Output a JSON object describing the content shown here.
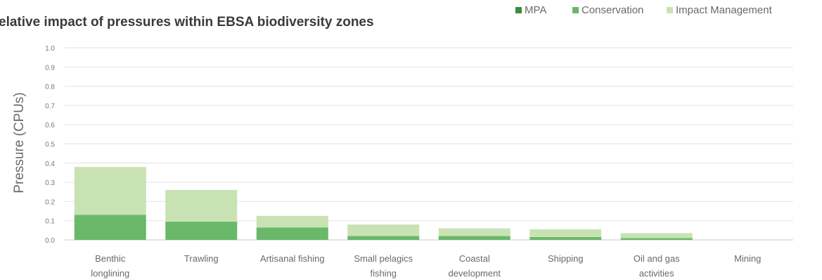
{
  "chart_data": {
    "type": "bar",
    "stacked": true,
    "title": "elative impact of pressures within EBSA biodiversity zones",
    "xlabel": "",
    "ylabel": "Pressure (CPUs)",
    "ylim": [
      0,
      1.0
    ],
    "yticks": [
      "0.0",
      "0.1",
      "0.2",
      "0.3",
      "0.4",
      "0.5",
      "0.6",
      "0.7",
      "0.8",
      "0.9",
      "1.0"
    ],
    "grid": true,
    "legend_position": "top-right",
    "categories": [
      [
        "Benthic",
        "longlining"
      ],
      [
        "Trawling"
      ],
      [
        "Artisanal fishing"
      ],
      [
        "Small pelagics",
        "fishing"
      ],
      [
        "Coastal",
        "development"
      ],
      [
        "Shipping"
      ],
      [
        "Oil and gas",
        "activities"
      ],
      [
        "Mining"
      ]
    ],
    "series": [
      {
        "name": "MPA",
        "color": "#3e8b3e",
        "values": [
          0,
          0,
          0,
          0,
          0,
          0,
          0,
          0
        ]
      },
      {
        "name": "Conservation",
        "color": "#6ab86a",
        "values": [
          0.13,
          0.095,
          0.065,
          0.02,
          0.02,
          0.015,
          0.01,
          0
        ]
      },
      {
        "name": "Impact Management",
        "color": "#c9e2b4",
        "values": [
          0.25,
          0.165,
          0.06,
          0.06,
          0.04,
          0.04,
          0.025,
          0
        ]
      }
    ]
  }
}
